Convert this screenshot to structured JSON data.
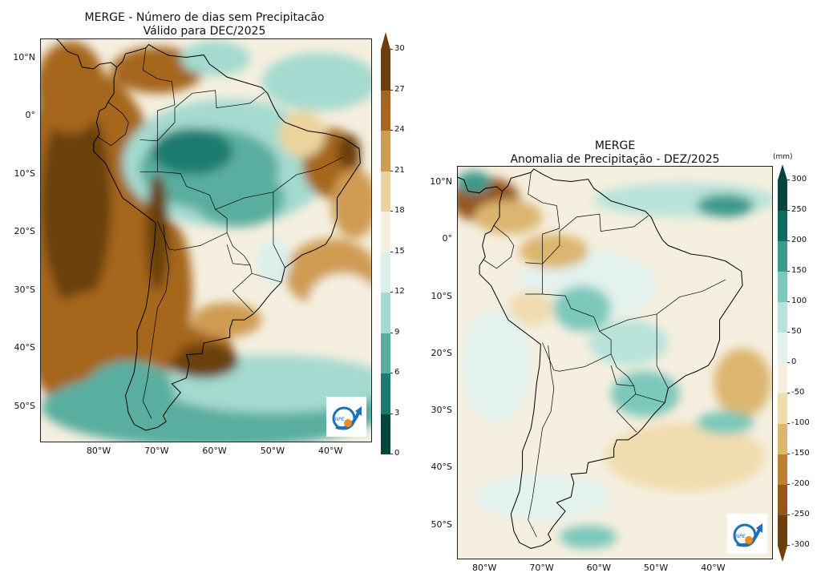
{
  "left_figure": {
    "title_line1": "MERGE - Número de dias sem Precipitacão",
    "title_line2": "Válido para DEC/2025",
    "lat_ticks": [
      "10°N",
      "0°",
      "10°S",
      "20°S",
      "30°S",
      "40°S",
      "50°S"
    ],
    "lon_ticks": [
      "80°W",
      "70°W",
      "60°W",
      "50°W",
      "40°W"
    ],
    "colorbar": {
      "levels": [
        "0",
        "3",
        "6",
        "9",
        "12",
        "15",
        "18",
        "21",
        "24",
        "27",
        "30"
      ],
      "colors": [
        "#01463c",
        "#1b7b70",
        "#5aae9f",
        "#a4dacf",
        "#dcefeb",
        "#f6efdf",
        "#ebd49c",
        "#cf9b52",
        "#a6661f",
        "#6b3f0e"
      ],
      "extend": "max"
    },
    "logo_text": "INPE"
  },
  "right_figure": {
    "title_line1": "MERGE",
    "title_line2": "Anomalia de Precipitação - DEZ/2025",
    "lat_ticks": [
      "10°N",
      "0°",
      "10°S",
      "20°S",
      "30°S",
      "40°S",
      "50°S"
    ],
    "lon_ticks": [
      "80°W",
      "70°W",
      "60°W",
      "50°W",
      "40°W"
    ],
    "colorbar": {
      "unit": "(mm)",
      "levels": [
        "300",
        "250",
        "200",
        "150",
        "100",
        "50",
        "0",
        "-50",
        "-100",
        "-150",
        "-200",
        "-250",
        "-300"
      ],
      "colors": [
        "#01463c",
        "#0f6b60",
        "#3a9a8c",
        "#7cc8bb",
        "#b9e3da",
        "#e3f2ee",
        "#f6efdf",
        "#f0dcae",
        "#dcb66f",
        "#bd8132",
        "#96571a",
        "#6b3f0e"
      ],
      "extend": "both"
    },
    "logo_text": "INPE"
  }
}
